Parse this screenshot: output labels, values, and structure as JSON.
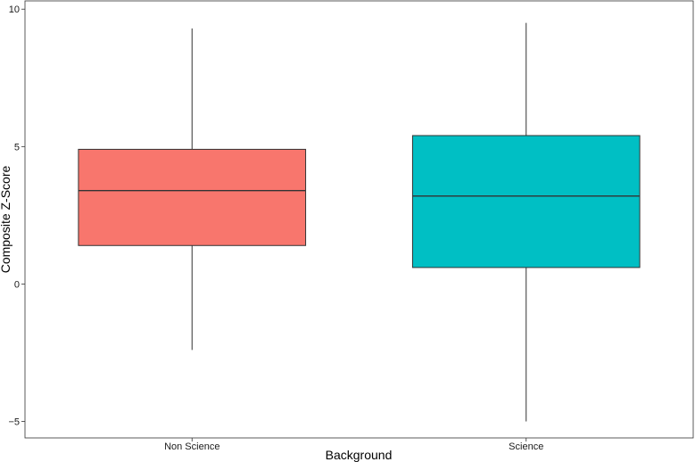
{
  "chart_data": {
    "type": "box",
    "xlabel": "Background",
    "ylabel": "Composite Z-Score",
    "ylim": [
      -5.6,
      10.3
    ],
    "yticks": [
      -5,
      0,
      5,
      10
    ],
    "grid": false,
    "categories": [
      "Non Science",
      "Science"
    ],
    "boxes": [
      {
        "category": "Non Science",
        "min": -2.4,
        "q1": 1.4,
        "median": 3.4,
        "q3": 4.9,
        "max": 9.3,
        "color": "#F8766D"
      },
      {
        "category": "Science",
        "min": -5.0,
        "q1": 0.6,
        "median": 3.2,
        "q3": 5.4,
        "max": 9.5,
        "color": "#00BFC4"
      }
    ]
  }
}
